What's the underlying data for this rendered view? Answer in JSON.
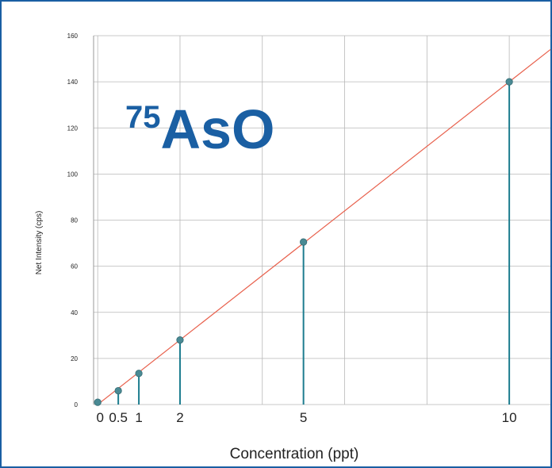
{
  "chart_data": {
    "type": "scatter",
    "title": "AsO",
    "title_superscript": "75",
    "xlabel": "Concentration (ppt)",
    "ylabel": "Net Intensity (cps)",
    "xlim": [
      -0.1,
      11.0
    ],
    "ylim": [
      0,
      160
    ],
    "x_ticks": [
      0,
      0.5,
      1,
      2,
      5,
      10
    ],
    "x_tick_labels": [
      "0",
      "0.5",
      "1",
      "2",
      "5",
      "10"
    ],
    "y_ticks": [
      0,
      20,
      40,
      60,
      80,
      100,
      120,
      140,
      160
    ],
    "grid": true,
    "points": [
      {
        "x": 0,
        "y": 1
      },
      {
        "x": 0.5,
        "y": 6
      },
      {
        "x": 1,
        "y": 13.5
      },
      {
        "x": 2,
        "y": 28
      },
      {
        "x": 5,
        "y": 70.5
      },
      {
        "x": 10,
        "y": 140
      }
    ],
    "fit_line": {
      "x": [
        0,
        11.0
      ],
      "y": [
        0,
        154
      ]
    },
    "colors": {
      "fit_line": "#e8604c",
      "marker": "#4a8a94",
      "stem": "#1d7d8f",
      "grid": "#b8b8b8",
      "title": "#1a5fa3",
      "frame": "#1a5fa3"
    }
  }
}
